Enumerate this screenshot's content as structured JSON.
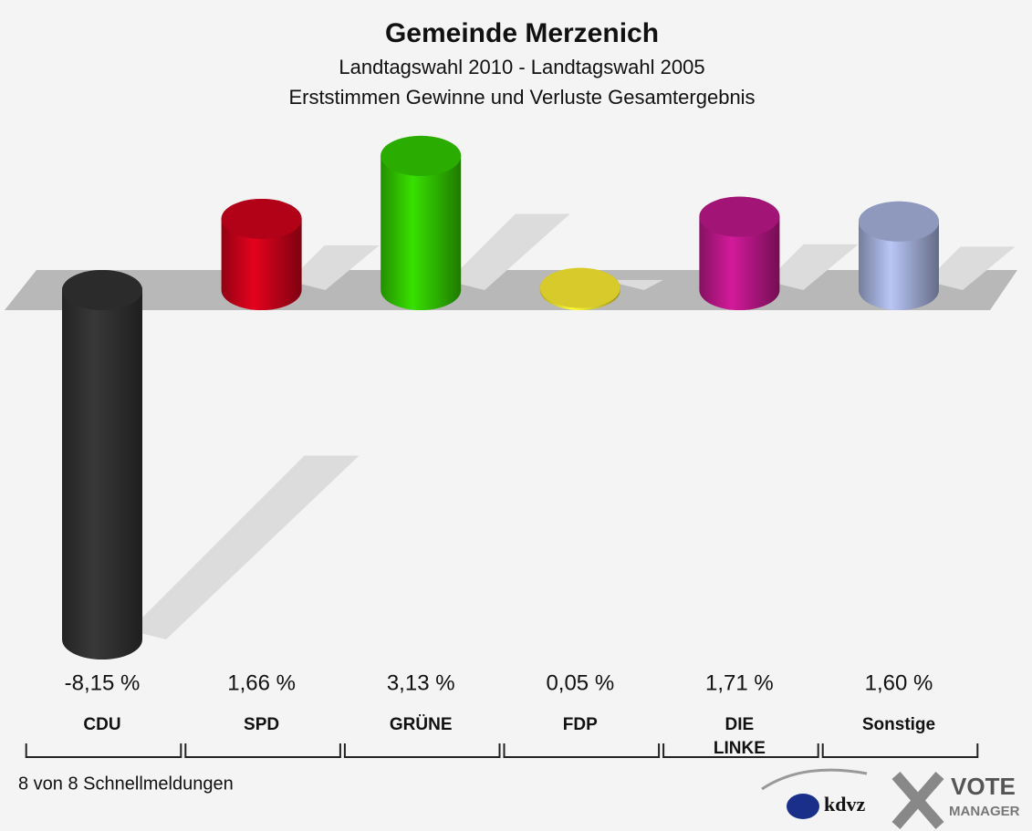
{
  "chart_data": {
    "type": "bar",
    "title": "Gemeinde Merzenich",
    "subtitle": "Landtagswahl 2010 - Landtagswahl 2005",
    "subtitle2": "Erststimmen Gewinne und Verluste Gesamtergebnis",
    "categories": [
      "CDU",
      "SPD",
      "GRÜNE",
      "FDP",
      "DIE LINKE",
      "Sonstige"
    ],
    "values": [
      -8.15,
      1.66,
      3.13,
      0.05,
      1.71,
      1.6
    ],
    "value_labels": [
      "-8,15 %",
      "1,66 %",
      "3,13 %",
      "0,05 %",
      "1,71 %",
      "1,60 %"
    ],
    "colors": [
      "#333333",
      "#d0021b",
      "#33cc00",
      "#ffee33",
      "#c0188c",
      "#a8b4e0"
    ],
    "footnote": "8 von 8 Schnellmeldungen"
  },
  "logo": {
    "brand": "kdvz",
    "product": "VOTE",
    "product2": "MANAGER"
  }
}
